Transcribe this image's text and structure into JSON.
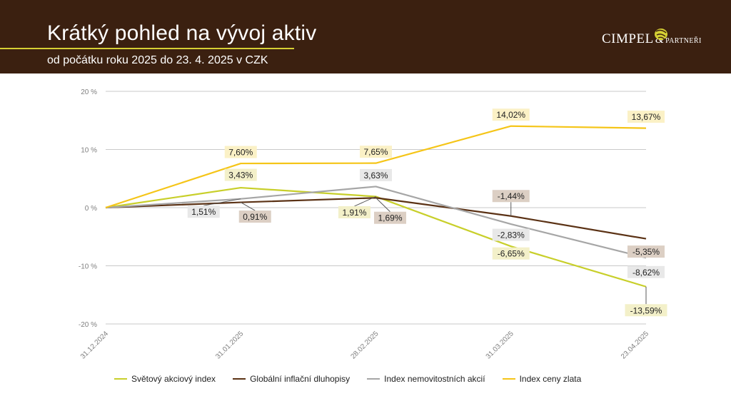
{
  "header": {
    "title": "Krátký pohled na vývoj aktiv",
    "subtitle": "od počátku roku 2025 do 23. 4. 2025 v CZK",
    "logo_main": "CIMPEL",
    "logo_amp": "&",
    "logo_small": "PARTNEŘI"
  },
  "colors": {
    "header_bg": "#3b2010",
    "accent": "#d6d034"
  },
  "chart_data": {
    "type": "line",
    "x": [
      "31.12.2024",
      "31.01.2025",
      "28.02.2025",
      "31.03.2025",
      "23.04.2025"
    ],
    "ylim": [
      -20,
      20
    ],
    "yticks": [
      20,
      10,
      0,
      -10,
      -20
    ],
    "ytick_labels": [
      "20 %",
      "10 %",
      "0 %",
      "-10 %",
      "-20 %"
    ],
    "grid": true,
    "legend_position": "bottom",
    "series": [
      {
        "name": "Světový akciový index",
        "color": "#c8cf2a",
        "values": [
          0,
          3.43,
          1.91,
          -6.65,
          -13.59
        ],
        "labels": [
          "",
          "3,43%",
          "1,91%",
          "-6,65%",
          "-13,59%"
        ],
        "label_bg": "#f3f0c9"
      },
      {
        "name": "Globální inflační dluhopisy",
        "color": "#5b3215",
        "values": [
          0,
          0.91,
          1.69,
          -1.44,
          -5.35
        ],
        "labels": [
          "",
          "0,91%",
          "1,69%",
          "-1,44%",
          "-5,35%"
        ],
        "label_bg": "#dccfc4"
      },
      {
        "name": "Index nemovitostních akcií",
        "color": "#a6a6a6",
        "values": [
          0,
          1.51,
          3.63,
          -2.83,
          -8.62
        ],
        "labels": [
          "",
          "1,51%",
          "3,63%",
          "-2,83%",
          "-8,62%"
        ],
        "label_bg": "#e8e8e8"
      },
      {
        "name": "Index ceny zlata",
        "color": "#f5c518",
        "values": [
          0,
          7.6,
          7.65,
          14.02,
          13.67
        ],
        "labels": [
          "",
          "7,60%",
          "7,65%",
          "14,02%",
          "13,67%"
        ],
        "label_bg": "#fbf1c6"
      }
    ]
  }
}
